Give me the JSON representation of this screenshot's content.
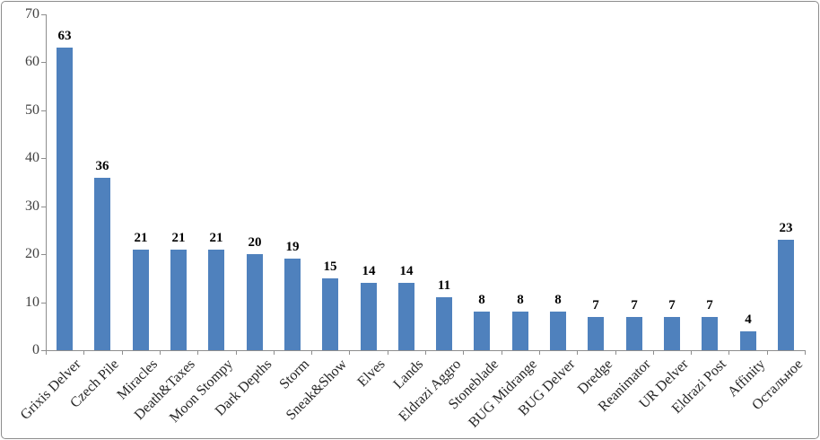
{
  "chart": {
    "background_color": "#FFFFFF",
    "border_color": "#8C8C8C"
  },
  "chart_data": {
    "type": "bar",
    "title": "",
    "xlabel": "",
    "ylabel": "",
    "categories": [
      "Grixis Delver",
      "Czech Pile",
      "Miracles",
      "Death&Taxes",
      "Moon Stompy",
      "Dark Depths",
      "Storm",
      "Sneak&Show",
      "Elves",
      "Lands",
      "Eldrazi Aggro",
      "Stoneblade",
      "BUG Midrange",
      "BUG Delver",
      "Dredge",
      "Reanimator",
      "UR Delver",
      "Eldrazi Post",
      "Affinity",
      "Остальное"
    ],
    "values": [
      63,
      36,
      21,
      21,
      21,
      20,
      19,
      15,
      14,
      14,
      11,
      8,
      8,
      8,
      7,
      7,
      7,
      7,
      4,
      23
    ],
    "ylim": [
      0,
      70
    ],
    "yticks": [
      0,
      10,
      20,
      30,
      40,
      50,
      60,
      70
    ],
    "grid": false,
    "legend": "none",
    "data_labels": true,
    "bar_color": "#4F81BD",
    "axis_color": "#8E8E8E",
    "tick_label_color": "#404040",
    "category_label_color": "#262626",
    "value_label_color": "#000000"
  }
}
